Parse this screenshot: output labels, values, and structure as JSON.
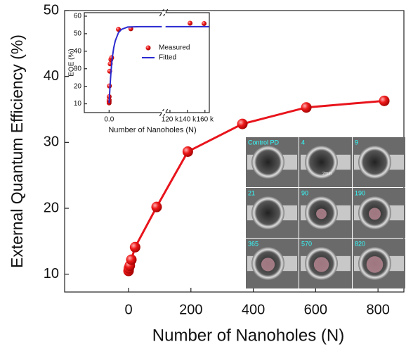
{
  "chart_data": [
    {
      "type": "line",
      "x_label": "Number of Nanoholes (N)",
      "y_label": "External Quantum Efficiency (%)",
      "x": [
        0,
        1,
        4,
        9,
        21,
        90,
        190,
        365,
        570,
        820
      ],
      "values": [
        10.5,
        10.9,
        11.3,
        12.2,
        14.1,
        20.2,
        28.6,
        32.8,
        35.3,
        36.3
      ],
      "color": "#e8141c",
      "xlim": [
        -205,
        883
      ],
      "ylim": [
        7.3,
        50
      ],
      "xticks": [
        0,
        200,
        400,
        600,
        800
      ],
      "yticks": [
        10,
        20,
        30,
        40,
        50
      ]
    },
    {
      "type": "scatter",
      "x_label": "Number of Nanoholes (N)",
      "y_label": "EQE (%)",
      "xlim": [
        -8000,
        165000
      ],
      "x_break": [
        17000,
        115000
      ],
      "ylim": [
        5,
        62
      ],
      "xticks": [
        {
          "value": 0,
          "label": "0.0"
        },
        {
          "value": 120000,
          "label": "120 k"
        },
        {
          "value": 140000,
          "label": "140 k"
        },
        {
          "value": 160000,
          "label": "160 k"
        }
      ],
      "yticks": [
        10,
        20,
        30,
        40,
        50,
        60
      ],
      "legend": "upper right",
      "series": [
        {
          "name": "Measured",
          "color": "#e8141c",
          "x": [
            0,
            4,
            9,
            21,
            90,
            190,
            365,
            570,
            820,
            3000,
            7000,
            143000,
            159000
          ],
          "values": [
            10.5,
            11.3,
            12.2,
            14.1,
            20.2,
            28.6,
            32.8,
            35.3,
            36.3,
            52.5,
            52.8,
            56,
            55.8
          ]
        },
        {
          "name": "Fitted",
          "color": "#2a2ad0",
          "x": [
            0,
            300,
            600,
            1000,
            1500,
            2000,
            3000,
            4000,
            6000,
            10000,
            17000,
            null,
            115000,
            165000
          ],
          "values": [
            10.5,
            20,
            28,
            36,
            42,
            46,
            50.5,
            52.5,
            53.8,
            54,
            54,
            null,
            54,
            54
          ]
        }
      ]
    }
  ],
  "image_panel": {
    "labels": [
      "Control PD",
      "4",
      "9",
      "21",
      "90",
      "190",
      "365",
      "570",
      "820"
    ],
    "scale": "2mm"
  }
}
